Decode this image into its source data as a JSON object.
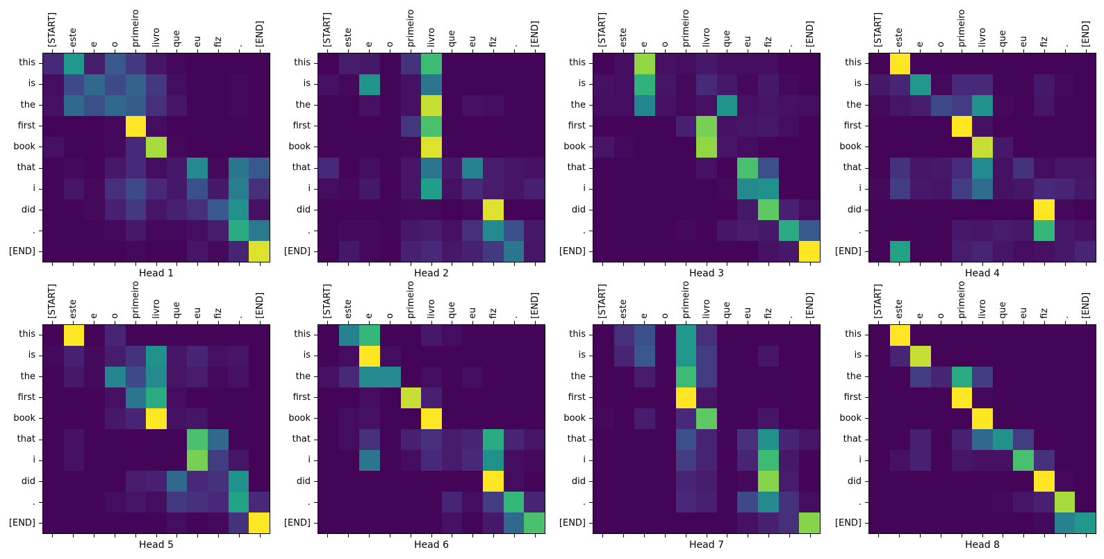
{
  "figure": {
    "background": "#ffffff",
    "text_color": "#000000"
  },
  "chart_data": {
    "type": "heatmap",
    "layout": "2x4 grid of attention-head heatmaps",
    "colormap": "viridis",
    "value_range": [
      0,
      1
    ],
    "colormap_anchors": [
      "#440154",
      "#482878",
      "#3e4989",
      "#31688e",
      "#26828e",
      "#21918c",
      "#1f9e89",
      "#35b779",
      "#5ec962",
      "#90d743",
      "#fde725"
    ],
    "x_categories": [
      "[START]",
      "este",
      "e",
      "o",
      "primeiro",
      "livro",
      "que",
      "eu",
      "fiz",
      ".",
      "[END]"
    ],
    "y_categories": [
      "this",
      "is",
      "the",
      "first",
      "book",
      "that",
      "i",
      "did",
      ".",
      "[END]"
    ],
    "heatmaps": [
      {
        "title": "Head 1",
        "values": [
          [
            0.1,
            0.55,
            0.07,
            0.25,
            0.15,
            0.05,
            0.02,
            0.01,
            0.01,
            0.01,
            0.01
          ],
          [
            0.03,
            0.2,
            0.3,
            0.2,
            0.28,
            0.15,
            0.03,
            0.01,
            0.01,
            0.02,
            0.01
          ],
          [
            0.04,
            0.3,
            0.22,
            0.3,
            0.26,
            0.12,
            0.05,
            0.01,
            0.01,
            0.02,
            0.01
          ],
          [
            0.01,
            0.01,
            0.01,
            0.02,
            1.0,
            0.03,
            0.01,
            0.01,
            0.01,
            0.01,
            0.01
          ],
          [
            0.04,
            0.01,
            0.01,
            0.02,
            0.1,
            0.92,
            0.02,
            0.01,
            0.01,
            0.01,
            0.01
          ],
          [
            0.01,
            0.02,
            0.01,
            0.06,
            0.1,
            0.03,
            0.06,
            0.45,
            0.02,
            0.35,
            0.25
          ],
          [
            0.01,
            0.05,
            0.02,
            0.12,
            0.2,
            0.1,
            0.06,
            0.22,
            0.06,
            0.38,
            0.12
          ],
          [
            0.01,
            0.01,
            0.02,
            0.08,
            0.15,
            0.05,
            0.08,
            0.12,
            0.25,
            0.5,
            0.04
          ],
          [
            0.01,
            0.01,
            0.01,
            0.02,
            0.06,
            0.02,
            0.02,
            0.03,
            0.07,
            0.65,
            0.37
          ],
          [
            0.01,
            0.01,
            0.01,
            0.01,
            0.02,
            0.01,
            0.01,
            0.05,
            0.02,
            0.09,
            0.97
          ]
        ]
      },
      {
        "title": "Head 2",
        "values": [
          [
            0.01,
            0.07,
            0.06,
            0.01,
            0.13,
            0.72,
            0.01,
            0.01,
            0.01,
            0.01,
            0.01
          ],
          [
            0.04,
            0.02,
            0.52,
            0.01,
            0.04,
            0.35,
            0.01,
            0.01,
            0.01,
            0.01,
            0.01
          ],
          [
            0.01,
            0.01,
            0.04,
            0.01,
            0.04,
            0.95,
            0.01,
            0.04,
            0.03,
            0.01,
            0.01
          ],
          [
            0.01,
            0.01,
            0.01,
            0.01,
            0.14,
            0.75,
            0.01,
            0.01,
            0.01,
            0.01,
            0.01
          ],
          [
            0.01,
            0.01,
            0.01,
            0.01,
            0.02,
            0.97,
            0.01,
            0.01,
            0.01,
            0.01,
            0.01
          ],
          [
            0.1,
            0.01,
            0.03,
            0.01,
            0.05,
            0.35,
            0.06,
            0.4,
            0.07,
            0.05,
            0.04
          ],
          [
            0.03,
            0.02,
            0.06,
            0.01,
            0.05,
            0.6,
            0.04,
            0.1,
            0.07,
            0.05,
            0.08
          ],
          [
            0.01,
            0.01,
            0.01,
            0.01,
            0.02,
            0.02,
            0.01,
            0.02,
            0.97,
            0.01,
            0.01
          ],
          [
            0.01,
            0.02,
            0.02,
            0.01,
            0.06,
            0.07,
            0.04,
            0.12,
            0.45,
            0.22,
            0.06
          ],
          [
            0.01,
            0.06,
            0.02,
            0.01,
            0.08,
            0.1,
            0.06,
            0.08,
            0.15,
            0.35,
            0.05
          ]
        ]
      },
      {
        "title": "Head 3",
        "values": [
          [
            0.01,
            0.03,
            0.9,
            0.04,
            0.03,
            0.06,
            0.03,
            0.03,
            0.03,
            0.01,
            0.01
          ],
          [
            0.04,
            0.03,
            0.68,
            0.05,
            0.02,
            0.1,
            0.06,
            0.02,
            0.06,
            0.02,
            0.01
          ],
          [
            0.03,
            0.03,
            0.42,
            0.04,
            0.02,
            0.04,
            0.52,
            0.04,
            0.05,
            0.04,
            0.03
          ],
          [
            0.01,
            0.01,
            0.01,
            0.01,
            0.08,
            0.85,
            0.04,
            0.05,
            0.06,
            0.03,
            0.01
          ],
          [
            0.05,
            0.02,
            0.01,
            0.01,
            0.01,
            0.9,
            0.05,
            0.03,
            0.01,
            0.01,
            0.01
          ],
          [
            0.01,
            0.01,
            0.01,
            0.01,
            0.01,
            0.04,
            0.01,
            0.75,
            0.22,
            0.01,
            0.01
          ],
          [
            0.01,
            0.01,
            0.01,
            0.01,
            0.01,
            0.01,
            0.02,
            0.45,
            0.5,
            0.01,
            0.01
          ],
          [
            0.01,
            0.01,
            0.01,
            0.01,
            0.01,
            0.01,
            0.01,
            0.06,
            0.8,
            0.08,
            0.03
          ],
          [
            0.01,
            0.01,
            0.01,
            0.01,
            0.02,
            0.01,
            0.05,
            0.07,
            0.06,
            0.65,
            0.25
          ],
          [
            0.01,
            0.01,
            0.01,
            0.01,
            0.01,
            0.01,
            0.01,
            0.01,
            0.04,
            0.06,
            1.0
          ]
        ]
      },
      {
        "title": "Head 4",
        "values": [
          [
            0.01,
            1.0,
            0.01,
            0.01,
            0.01,
            0.01,
            0.01,
            0.01,
            0.01,
            0.01,
            0.01
          ],
          [
            0.06,
            0.09,
            0.55,
            0.02,
            0.1,
            0.1,
            0.01,
            0.01,
            0.06,
            0.02,
            0.01
          ],
          [
            0.02,
            0.05,
            0.07,
            0.2,
            0.16,
            0.5,
            0.02,
            0.01,
            0.05,
            0.01,
            0.01
          ],
          [
            0.01,
            0.01,
            0.01,
            0.01,
            1.0,
            0.04,
            0.01,
            0.01,
            0.01,
            0.01,
            0.01
          ],
          [
            0.01,
            0.01,
            0.01,
            0.01,
            0.01,
            0.95,
            0.06,
            0.01,
            0.01,
            0.01,
            0.01
          ],
          [
            0.01,
            0.13,
            0.05,
            0.06,
            0.11,
            0.45,
            0.04,
            0.13,
            0.03,
            0.05,
            0.05
          ],
          [
            0.02,
            0.16,
            0.06,
            0.05,
            0.16,
            0.32,
            0.04,
            0.05,
            0.1,
            0.09,
            0.06
          ],
          [
            0.01,
            0.01,
            0.01,
            0.01,
            0.01,
            0.01,
            0.01,
            0.01,
            1.0,
            0.02,
            0.01
          ],
          [
            0.01,
            0.01,
            0.01,
            0.01,
            0.06,
            0.05,
            0.07,
            0.06,
            0.7,
            0.06,
            0.04
          ],
          [
            0.01,
            0.62,
            0.01,
            0.01,
            0.07,
            0.09,
            0.05,
            0.03,
            0.04,
            0.06,
            0.09
          ]
        ]
      },
      {
        "title": "Head 5",
        "values": [
          [
            0.01,
            1.0,
            0.01,
            0.09,
            0.01,
            0.01,
            0.01,
            0.01,
            0.01,
            0.01,
            0.01
          ],
          [
            0.02,
            0.08,
            0.02,
            0.07,
            0.13,
            0.5,
            0.05,
            0.09,
            0.04,
            0.05,
            0.01
          ],
          [
            0.01,
            0.06,
            0.02,
            0.42,
            0.2,
            0.45,
            0.05,
            0.07,
            0.02,
            0.04,
            0.01
          ],
          [
            0.01,
            0.01,
            0.01,
            0.04,
            0.35,
            0.65,
            0.03,
            0.01,
            0.01,
            0.01,
            0.01
          ],
          [
            0.01,
            0.01,
            0.01,
            0.06,
            0.09,
            1.0,
            0.04,
            0.05,
            0.01,
            0.01,
            0.01
          ],
          [
            0.01,
            0.04,
            0.01,
            0.01,
            0.01,
            0.01,
            0.01,
            0.75,
            0.3,
            0.01,
            0.01
          ],
          [
            0.01,
            0.04,
            0.01,
            0.01,
            0.01,
            0.01,
            0.01,
            0.85,
            0.16,
            0.05,
            0.01
          ],
          [
            0.01,
            0.01,
            0.01,
            0.01,
            0.07,
            0.08,
            0.3,
            0.1,
            0.13,
            0.5,
            0.01
          ],
          [
            0.01,
            0.01,
            0.01,
            0.03,
            0.05,
            0.03,
            0.15,
            0.12,
            0.1,
            0.62,
            0.1
          ],
          [
            0.01,
            0.01,
            0.01,
            0.01,
            0.01,
            0.01,
            0.03,
            0.01,
            0.02,
            0.13,
            1.0
          ]
        ]
      },
      {
        "title": "Head 6",
        "values": [
          [
            0.01,
            0.4,
            0.7,
            0.01,
            0.01,
            0.06,
            0.03,
            0.01,
            0.01,
            0.01,
            0.01
          ],
          [
            0.01,
            0.03,
            1.0,
            0.03,
            0.01,
            0.01,
            0.01,
            0.01,
            0.01,
            0.01,
            0.01
          ],
          [
            0.04,
            0.1,
            0.45,
            0.45,
            0.01,
            0.03,
            0.01,
            0.03,
            0.01,
            0.01,
            0.01
          ],
          [
            0.01,
            0.01,
            0.03,
            0.01,
            0.95,
            0.08,
            0.01,
            0.01,
            0.01,
            0.01,
            0.01
          ],
          [
            0.01,
            0.03,
            0.04,
            0.01,
            0.01,
            1.0,
            0.01,
            0.01,
            0.01,
            0.01,
            0.01
          ],
          [
            0.01,
            0.03,
            0.12,
            0.01,
            0.08,
            0.12,
            0.07,
            0.09,
            0.65,
            0.09,
            0.05
          ],
          [
            0.01,
            0.01,
            0.35,
            0.01,
            0.03,
            0.1,
            0.07,
            0.1,
            0.5,
            0.03,
            0.02
          ],
          [
            0.01,
            0.01,
            0.01,
            0.01,
            0.01,
            0.01,
            0.01,
            0.01,
            1.0,
            0.03,
            0.01
          ],
          [
            0.01,
            0.01,
            0.01,
            0.01,
            0.01,
            0.01,
            0.09,
            0.03,
            0.16,
            0.7,
            0.09
          ],
          [
            0.01,
            0.01,
            0.01,
            0.01,
            0.01,
            0.01,
            0.04,
            0.01,
            0.06,
            0.3,
            0.75
          ]
        ]
      },
      {
        "title": "Head 7",
        "values": [
          [
            0.01,
            0.12,
            0.22,
            0.01,
            0.55,
            0.12,
            0.01,
            0.01,
            0.01,
            0.01,
            0.01
          ],
          [
            0.01,
            0.09,
            0.25,
            0.01,
            0.55,
            0.16,
            0.01,
            0.01,
            0.05,
            0.01,
            0.01
          ],
          [
            0.01,
            0.01,
            0.07,
            0.01,
            0.72,
            0.16,
            0.01,
            0.01,
            0.01,
            0.01,
            0.01
          ],
          [
            0.01,
            0.01,
            0.01,
            0.01,
            1.0,
            0.05,
            0.01,
            0.01,
            0.01,
            0.01,
            0.01
          ],
          [
            0.02,
            0.01,
            0.07,
            0.01,
            0.1,
            0.8,
            0.01,
            0.01,
            0.05,
            0.01,
            0.01
          ],
          [
            0.01,
            0.01,
            0.01,
            0.01,
            0.22,
            0.09,
            0.01,
            0.12,
            0.5,
            0.09,
            0.05
          ],
          [
            0.01,
            0.01,
            0.01,
            0.01,
            0.16,
            0.09,
            0.01,
            0.09,
            0.72,
            0.06,
            0.01
          ],
          [
            0.01,
            0.01,
            0.01,
            0.01,
            0.09,
            0.07,
            0.01,
            0.02,
            0.88,
            0.07,
            0.01
          ],
          [
            0.01,
            0.01,
            0.01,
            0.01,
            0.1,
            0.08,
            0.01,
            0.2,
            0.45,
            0.13,
            0.03
          ],
          [
            0.01,
            0.01,
            0.01,
            0.01,
            0.01,
            0.01,
            0.01,
            0.04,
            0.08,
            0.12,
            0.88
          ]
        ]
      },
      {
        "title": "Head 8",
        "values": [
          [
            0.01,
            1.0,
            0.01,
            0.01,
            0.01,
            0.01,
            0.01,
            0.01,
            0.01,
            0.01,
            0.01
          ],
          [
            0.01,
            0.09,
            0.95,
            0.01,
            0.01,
            0.01,
            0.01,
            0.01,
            0.01,
            0.01,
            0.01
          ],
          [
            0.01,
            0.01,
            0.16,
            0.09,
            0.65,
            0.16,
            0.01,
            0.01,
            0.01,
            0.01,
            0.01
          ],
          [
            0.01,
            0.01,
            0.01,
            0.01,
            1.0,
            0.02,
            0.01,
            0.01,
            0.01,
            0.01,
            0.01
          ],
          [
            0.01,
            0.01,
            0.01,
            0.01,
            0.01,
            1.0,
            0.01,
            0.01,
            0.01,
            0.01,
            0.01
          ],
          [
            0.01,
            0.01,
            0.08,
            0.01,
            0.08,
            0.3,
            0.5,
            0.16,
            0.01,
            0.01,
            0.01
          ],
          [
            0.01,
            0.04,
            0.08,
            0.01,
            0.05,
            0.04,
            0.04,
            0.75,
            0.13,
            0.01,
            0.01
          ],
          [
            0.01,
            0.01,
            0.01,
            0.01,
            0.01,
            0.01,
            0.01,
            0.01,
            1.0,
            0.02,
            0.01
          ],
          [
            0.01,
            0.01,
            0.01,
            0.01,
            0.01,
            0.01,
            0.02,
            0.05,
            0.08,
            0.92,
            0.01
          ],
          [
            0.01,
            0.01,
            0.01,
            0.01,
            0.01,
            0.01,
            0.01,
            0.01,
            0.02,
            0.4,
            0.55
          ]
        ]
      }
    ]
  }
}
